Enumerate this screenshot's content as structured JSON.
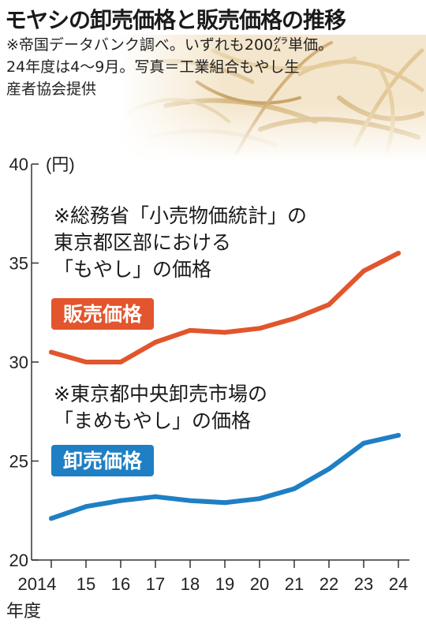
{
  "title": "モヤシの卸売価格と販売価格の推移",
  "notes": {
    "line1": "※帝国データバンク調べ。いずれも200㌘単価。",
    "line2": "24年度は4～9月。写真＝工業組合もやし生",
    "line3": "産者協会提供"
  },
  "colors": {
    "retail": "#e2552d",
    "wholesale": "#1f7fc4",
    "axis": "#333333"
  },
  "chart_data": {
    "type": "line",
    "x": [
      "2014",
      "15",
      "16",
      "17",
      "18",
      "19",
      "20",
      "21",
      "22",
      "23",
      "24"
    ],
    "xlabel": "年度",
    "ylabel": "(円)",
    "ylim": [
      20,
      40
    ],
    "yticks": [
      20,
      25,
      30,
      35,
      40
    ],
    "grid": false,
    "series": [
      {
        "name": "販売価格",
        "note": [
          "※総務省「小売物価統計」の",
          "東京都区部における",
          "「もやし」の価格"
        ],
        "values": [
          30.5,
          30.0,
          30.0,
          31.0,
          31.6,
          31.5,
          31.7,
          32.2,
          32.9,
          34.6,
          35.5
        ]
      },
      {
        "name": "卸売価格",
        "note": [
          "※東京都中央卸売市場の",
          "「まめもやし」の価格"
        ],
        "values": [
          22.1,
          22.7,
          23.0,
          23.2,
          23.0,
          22.9,
          23.1,
          23.6,
          24.6,
          25.9,
          26.3
        ]
      }
    ]
  }
}
